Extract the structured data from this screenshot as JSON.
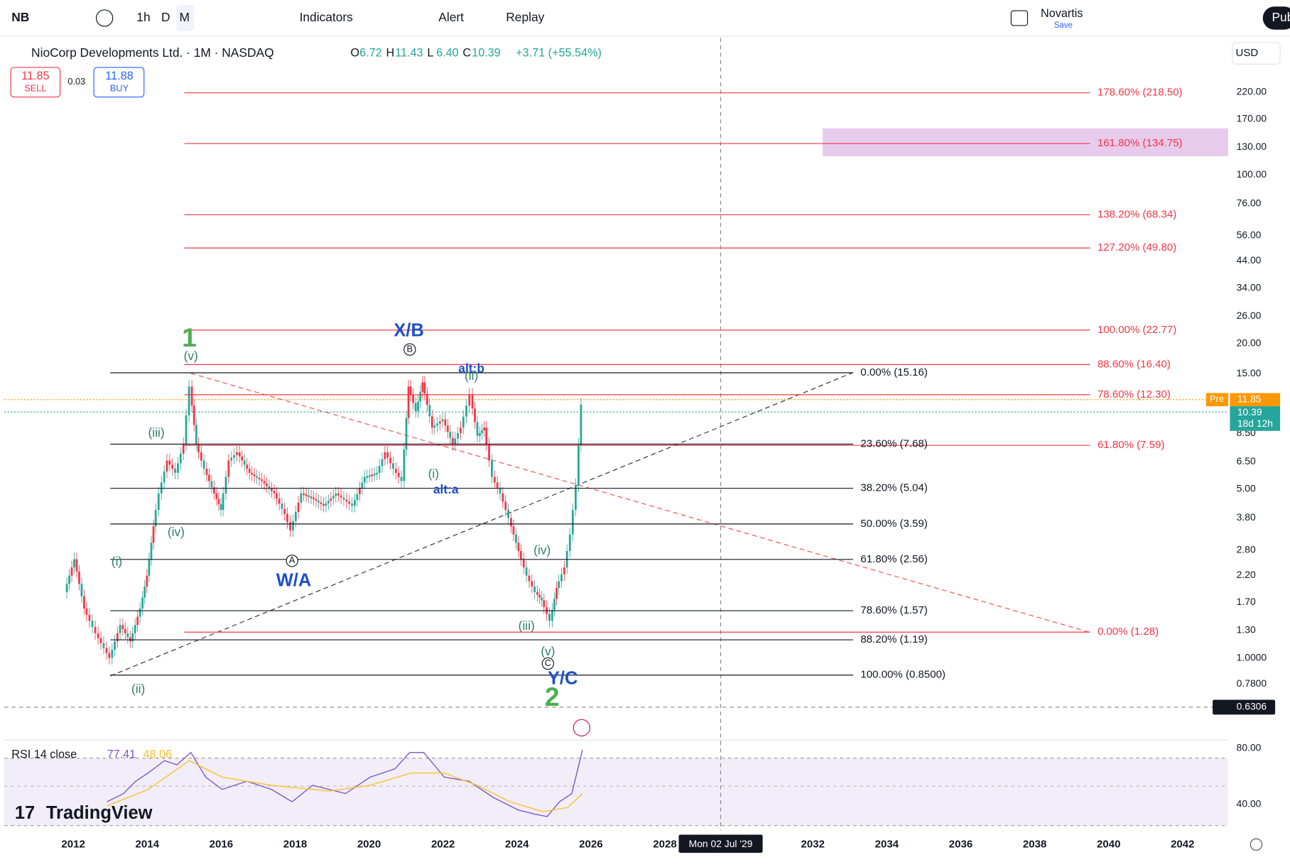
{
  "toolbar": {
    "symbol": "NB",
    "intervals": [
      "1h",
      "D",
      "M"
    ],
    "indicators": "Indicators",
    "alert": "Alert",
    "replay": "Replay",
    "layout_name": "Novartis",
    "layout_status": "Save",
    "publish": "Pub"
  },
  "legend": {
    "title": "NioCorp Developments Ltd. · 1M · NASDAQ",
    "ohlc": [
      {
        "key": "O",
        "value": "6.72"
      },
      {
        "key": "H",
        "value": "11.43"
      },
      {
        "key": "L",
        "value": "6.40"
      },
      {
        "key": "C",
        "value": "10.39"
      }
    ],
    "change": "+3.71 (+55.54%)",
    "sell_price": "11.85",
    "sell": "SELL",
    "spread": "0.03",
    "buy_price": "11.88",
    "buy": "BUY"
  },
  "currency": "USD",
  "price_axis": [
    "220.00",
    "170.00",
    "130.00",
    "100.00",
    "76.00",
    "56.00",
    "44.00",
    "34.00",
    "26.00",
    "20.00",
    "15.00",
    "8.50",
    "6.50",
    "5.00",
    "3.80",
    "2.80",
    "2.20",
    "1.70",
    "1.30",
    "1.0000",
    "0.7800"
  ],
  "price_tags": {
    "pre": "Pre",
    "pre_price": "11.85",
    "last_price": "10.39",
    "countdown": "18d 12h",
    "crosshair_price": "0.6306"
  },
  "fib_extension": [
    "178.60% (218.50)",
    "161.80% (134.75)",
    "138.20% (68.34)",
    "127.20% (49.80)",
    "100.00% (22.77)",
    "88.60% (16.40)",
    "78.60% (12.30)",
    "61.80% (7.59)",
    "0.00% (1.28)"
  ],
  "fib_retracement": [
    "0.00% (15.16)",
    "23.60% (7.68)",
    "38.20% (5.04)",
    "50.00% (3.59)",
    "61.80% (2.56)",
    "78.60% (1.57)",
    "88.20% (1.19)",
    "100.00% (0.8500)"
  ],
  "wave_labels": [
    "1",
    "(v)",
    "(iii)",
    "(iv)",
    "(i)",
    "(ii)",
    "W/A",
    "A",
    "X/B",
    "B",
    "alt:b",
    "(ii)",
    "(i)",
    "alt:a",
    "(iv)",
    "(iii)",
    "(v)",
    "C",
    "Y/C",
    "2"
  ],
  "rsi": {
    "label": "RSI 14 close",
    "value": "77.41",
    "ma": "48.06",
    "axis": [
      "80.00",
      "40.00"
    ]
  },
  "time_axis": [
    "2012",
    "2014",
    "2016",
    "2018",
    "2020",
    "2022",
    "2024",
    "2026",
    "2028",
    "2032",
    "2034",
    "2036",
    "2038",
    "2040",
    "2042"
  ],
  "crosshair_date": "Mon 02 Jul '29",
  "logo": "TradingView"
}
